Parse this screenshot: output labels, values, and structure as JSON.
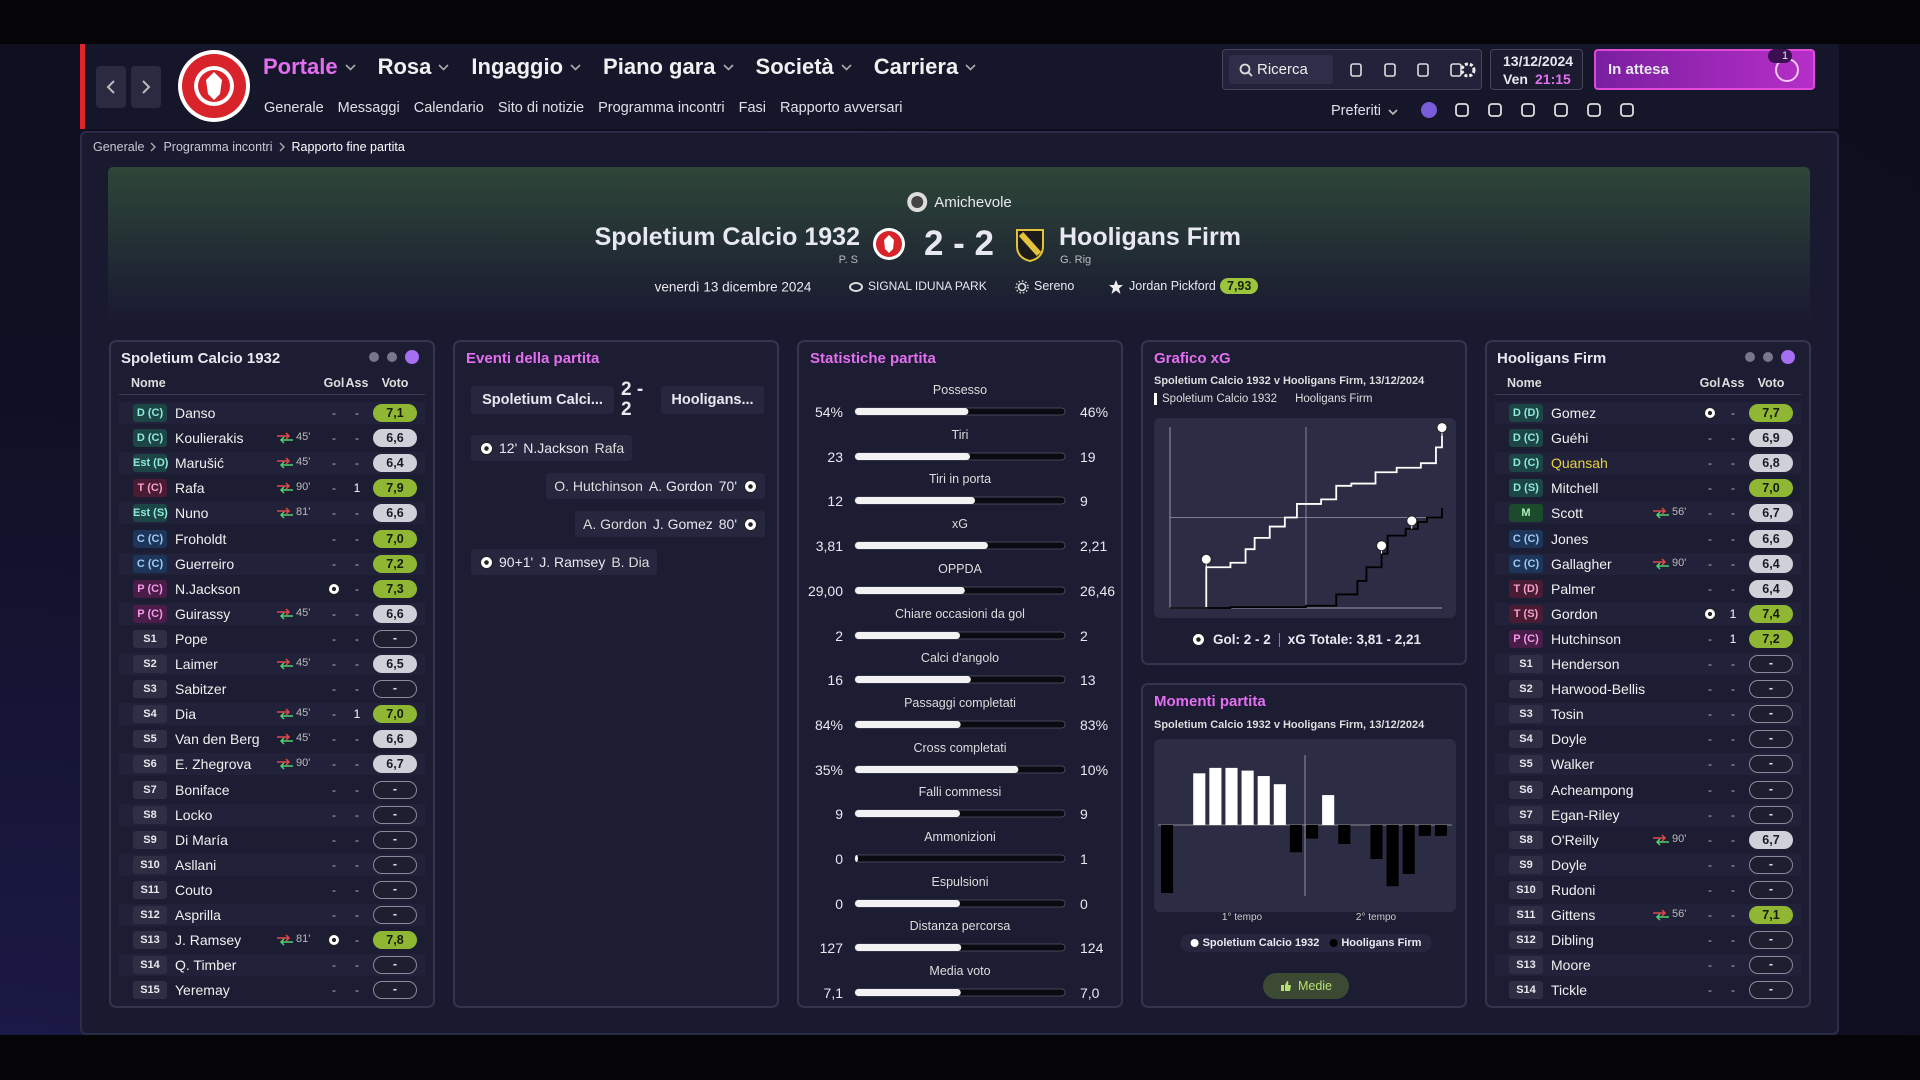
{
  "nav": {
    "items": [
      "Portale",
      "Rosa",
      "Ingaggio",
      "Piano gara",
      "Società",
      "Carriera"
    ],
    "subitems": [
      "Generale",
      "Messaggi",
      "Calendario",
      "Sito di notizie",
      "Programma incontri",
      "Fasi",
      "Rapporto avversari"
    ],
    "search": "Ricerca",
    "date": "13/12/2024",
    "weekday": "Ven",
    "time": "21:15",
    "status": "In attesa",
    "notifications": "1",
    "favorites": "Preferiti"
  },
  "breadcrumb": [
    "Generale",
    "Programma incontri",
    "Rapporto fine partita"
  ],
  "match": {
    "competition": "Amichevole",
    "home": "Spoletium Calcio 1932",
    "home_manager": "P. S",
    "score": "2 - 2",
    "away": "Hooligans Firm",
    "away_manager": "G. Rig",
    "date": "venerdì 13 dicembre 2024",
    "stadium": "SIGNAL IDUNA PARK",
    "weather": "Sereno",
    "player_of_match": "Jordan Pickford",
    "player_of_match_rating": "7,93"
  },
  "home_lineup": {
    "title": "Spoletium Calcio 1932",
    "columns": [
      "Nome",
      "Gol",
      "Ass",
      "Voto"
    ],
    "players": [
      {
        "pos": "D (C)",
        "name": "Danso",
        "gol": "-",
        "ass": "-",
        "voto": "7,1"
      },
      {
        "pos": "D (C)",
        "name": "Koulierakis",
        "sub": "45'",
        "gol": "-",
        "ass": "-",
        "voto": "6,6"
      },
      {
        "pos": "Est (D)",
        "name": "Marušić",
        "sub": "45'",
        "gol": "-",
        "ass": "-",
        "voto": "6,4"
      },
      {
        "pos": "T (C)",
        "name": "Rafa",
        "sub": "90'",
        "gol": "-",
        "ass": "1",
        "voto": "7,9"
      },
      {
        "pos": "Est (S)",
        "name": "Nuno",
        "sub": "81'",
        "gol": "-",
        "ass": "-",
        "voto": "6,6"
      },
      {
        "pos": "C (C)",
        "name": "Froholdt",
        "gol": "-",
        "ass": "-",
        "voto": "7,0"
      },
      {
        "pos": "C (C)",
        "name": "Guerreiro",
        "gol": "-",
        "ass": "-",
        "voto": "7,2"
      },
      {
        "pos": "P (C)",
        "name": "N.Jackson",
        "gol": 1,
        "ass": "-",
        "voto": "7,3"
      },
      {
        "pos": "P (C)",
        "name": "Guirassy",
        "sub": "45'",
        "gol": "-",
        "ass": "-",
        "voto": "6,6"
      },
      {
        "pos": "S1",
        "name": "Pope",
        "gol": "-",
        "ass": "-",
        "voto": "-"
      },
      {
        "pos": "S2",
        "name": "Laimer",
        "sub": "45'",
        "gol": "-",
        "ass": "-",
        "voto": "6,5"
      },
      {
        "pos": "S3",
        "name": "Sabitzer",
        "gol": "-",
        "ass": "-",
        "voto": "-"
      },
      {
        "pos": "S4",
        "name": "Dia",
        "sub": "45'",
        "gol": "-",
        "ass": "1",
        "voto": "7,0"
      },
      {
        "pos": "S5",
        "name": "Van den Berg",
        "sub": "45'",
        "gol": "-",
        "ass": "-",
        "voto": "6,6"
      },
      {
        "pos": "S6",
        "name": "E. Zhegrova",
        "sub": "90'",
        "gol": "-",
        "ass": "-",
        "voto": "6,7"
      },
      {
        "pos": "S7",
        "name": "Boniface",
        "gol": "-",
        "ass": "-",
        "voto": "-"
      },
      {
        "pos": "S8",
        "name": "Locko",
        "gol": "-",
        "ass": "-",
        "voto": "-"
      },
      {
        "pos": "S9",
        "name": "Di María",
        "gol": "-",
        "ass": "-",
        "voto": "-"
      },
      {
        "pos": "S10",
        "name": "Asllani",
        "gol": "-",
        "ass": "-",
        "voto": "-"
      },
      {
        "pos": "S11",
        "name": "Couto",
        "gol": "-",
        "ass": "-",
        "voto": "-"
      },
      {
        "pos": "S12",
        "name": "Asprilla",
        "gol": "-",
        "ass": "-",
        "voto": "-"
      },
      {
        "pos": "S13",
        "name": "J. Ramsey",
        "sub": "81'",
        "gol": 1,
        "ass": "-",
        "voto": "7,8"
      },
      {
        "pos": "S14",
        "name": "Q. Timber",
        "gol": "-",
        "ass": "-",
        "voto": "-"
      },
      {
        "pos": "S15",
        "name": "Yeremay",
        "gol": "-",
        "ass": "-",
        "voto": "-"
      }
    ]
  },
  "away_lineup": {
    "title": "Hooligans Firm",
    "columns": [
      "Nome",
      "Gol",
      "Ass",
      "Voto"
    ],
    "players": [
      {
        "pos": "D (D)",
        "name": "Gomez",
        "gol": 1,
        "ass": "-",
        "voto": "7,7"
      },
      {
        "pos": "D (C)",
        "name": "Guéhi",
        "gol": "-",
        "ass": "-",
        "voto": "6,9"
      },
      {
        "pos": "D (C)",
        "name": "Quansah",
        "name_color": "#e6d23c",
        "gol": "-",
        "ass": "-",
        "voto": "6,8"
      },
      {
        "pos": "D (S)",
        "name": "Mitchell",
        "gol": "-",
        "ass": "-",
        "voto": "7,0"
      },
      {
        "pos": "M",
        "name": "Scott",
        "sub": "56'",
        "gol": "-",
        "ass": "-",
        "voto": "6,7"
      },
      {
        "pos": "C (C)",
        "name": "Jones",
        "gol": "-",
        "ass": "-",
        "voto": "6,6"
      },
      {
        "pos": "C (C)",
        "name": "Gallagher",
        "sub": "90'",
        "gol": "-",
        "ass": "-",
        "voto": "6,4"
      },
      {
        "pos": "T (D)",
        "name": "Palmer",
        "gol": "-",
        "ass": "-",
        "voto": "6,4"
      },
      {
        "pos": "T (S)",
        "name": "Gordon",
        "gol": 1,
        "ass": "1",
        "voto": "7,4"
      },
      {
        "pos": "P (C)",
        "name": "Hutchinson",
        "gol": "-",
        "ass": "1",
        "voto": "7,2"
      },
      {
        "pos": "S1",
        "name": "Henderson",
        "gol": "-",
        "ass": "-",
        "voto": "-"
      },
      {
        "pos": "S2",
        "name": "Harwood-Bellis",
        "gol": "-",
        "ass": "-",
        "voto": "-"
      },
      {
        "pos": "S3",
        "name": "Tosin",
        "gol": "-",
        "ass": "-",
        "voto": "-"
      },
      {
        "pos": "S4",
        "name": "Doyle",
        "gol": "-",
        "ass": "-",
        "voto": "-"
      },
      {
        "pos": "S5",
        "name": "Walker",
        "gol": "-",
        "ass": "-",
        "voto": "-"
      },
      {
        "pos": "S6",
        "name": "Acheampong",
        "gol": "-",
        "ass": "-",
        "voto": "-"
      },
      {
        "pos": "S7",
        "name": "Egan-Riley",
        "gol": "-",
        "ass": "-",
        "voto": "-"
      },
      {
        "pos": "S8",
        "name": "O'Reilly",
        "sub": "90'",
        "gol": "-",
        "ass": "-",
        "voto": "6,7"
      },
      {
        "pos": "S9",
        "name": "Doyle",
        "gol": "-",
        "ass": "-",
        "voto": "-"
      },
      {
        "pos": "S10",
        "name": "Rudoni",
        "gol": "-",
        "ass": "-",
        "voto": "-"
      },
      {
        "pos": "S11",
        "name": "Gittens",
        "sub": "56'",
        "gol": "-",
        "ass": "-",
        "voto": "7,1"
      },
      {
        "pos": "S12",
        "name": "Dibling",
        "gol": "-",
        "ass": "-",
        "voto": "-"
      },
      {
        "pos": "S13",
        "name": "Moore",
        "gol": "-",
        "ass": "-",
        "voto": "-"
      },
      {
        "pos": "S14",
        "name": "Tickle",
        "gol": "-",
        "ass": "-",
        "voto": "-"
      }
    ]
  },
  "events": {
    "title": "Eventi della partita",
    "home_short": "Spoletium Calci...",
    "score": "2 - 2",
    "away_short": "Hooligans...",
    "items": [
      {
        "side": "home",
        "minute": "12'",
        "scorer": "N.Jackson",
        "assist": "Rafa"
      },
      {
        "side": "away",
        "minute": "70'",
        "scorer": "A. Gordon",
        "assist": "O. Hutchinson"
      },
      {
        "side": "away",
        "minute": "80'",
        "scorer": "J. Gomez",
        "assist": "A. Gordon"
      },
      {
        "side": "home",
        "minute": "90+1'",
        "scorer": "J. Ramsey",
        "assist": "B. Dia"
      }
    ]
  },
  "stats": {
    "title": "Statistiche partita",
    "rows": [
      {
        "label": "Possesso",
        "home": "54%",
        "away": "46%"
      },
      {
        "label": "Tiri",
        "home": "23",
        "away": "19"
      },
      {
        "label": "Tiri in porta",
        "home": "12",
        "away": "9"
      },
      {
        "label": "xG",
        "home": "3,81",
        "away": "2,21"
      },
      {
        "label": "OPPDA",
        "home": "29,00",
        "away": "26,46"
      },
      {
        "label": "Chiare occasioni da gol",
        "home": "2",
        "away": "2"
      },
      {
        "label": "Calci d'angolo",
        "home": "16",
        "away": "13"
      },
      {
        "label": "Passaggi completati",
        "home": "84%",
        "away": "83%"
      },
      {
        "label": "Cross completati",
        "home": "35%",
        "away": "10%"
      },
      {
        "label": "Falli commessi",
        "home": "9",
        "away": "9"
      },
      {
        "label": "Ammonizioni",
        "home": "0",
        "away": "1"
      },
      {
        "label": "Espulsioni",
        "home": "0",
        "away": "0"
      },
      {
        "label": "Distanza percorsa",
        "home": "127",
        "away": "124"
      },
      {
        "label": "Media voto",
        "home": "7,1",
        "away": "7,0"
      }
    ]
  },
  "xg_chart": {
    "type": "line",
    "title": "Grafico xG",
    "subtitle": "Spoletium Calcio 1932 v Hooligans Firm, 13/12/2024",
    "xlim": [
      0,
      90
    ],
    "ylim": [
      0,
      4
    ],
    "series": [
      {
        "name": "Spoletium Calcio 1932",
        "color": "#ffffff",
        "x": [
          0,
          12,
          12,
          20,
          25,
          28,
          33,
          38,
          42,
          50,
          55,
          60,
          68,
          75,
          83,
          88,
          90
        ],
        "values": [
          0,
          0.15,
          0.9,
          1.0,
          1.3,
          1.55,
          1.8,
          2.0,
          2.3,
          2.4,
          2.7,
          2.75,
          3.0,
          3.1,
          3.2,
          3.55,
          3.81
        ],
        "goals": [
          12,
          90
        ]
      },
      {
        "name": "Hooligans Firm",
        "color": "#000000",
        "x": [
          0,
          20,
          45,
          55,
          62,
          65,
          70,
          72,
          78,
          82,
          85,
          90
        ],
        "values": [
          0,
          0.02,
          0.05,
          0.3,
          0.6,
          0.9,
          1.2,
          1.6,
          1.75,
          1.9,
          2.0,
          2.21
        ],
        "goals": [
          70,
          80
        ]
      }
    ],
    "goals_label": "Gol: 2 - 2",
    "xg_label": "xG Totale: 3,81 - 2,21"
  },
  "momentum_chart": {
    "type": "bar",
    "title": "Momenti partita",
    "subtitle": "Spoletium Calcio 1932 v Hooligans Firm, 13/12/2024",
    "categories": [
      "1° tempo",
      "2° tempo"
    ],
    "ylim": [
      -50,
      50
    ],
    "values": [
      -50,
      0,
      38,
      42,
      42,
      40,
      36,
      30,
      -20,
      -10,
      22,
      -14,
      0,
      -25,
      -45,
      -36,
      -8,
      -8
    ],
    "series_names": [
      "Spoletium Calcio 1932",
      "Hooligans Firm"
    ],
    "colors": [
      "#ffffff",
      "#000000"
    ],
    "button": "Medie"
  }
}
